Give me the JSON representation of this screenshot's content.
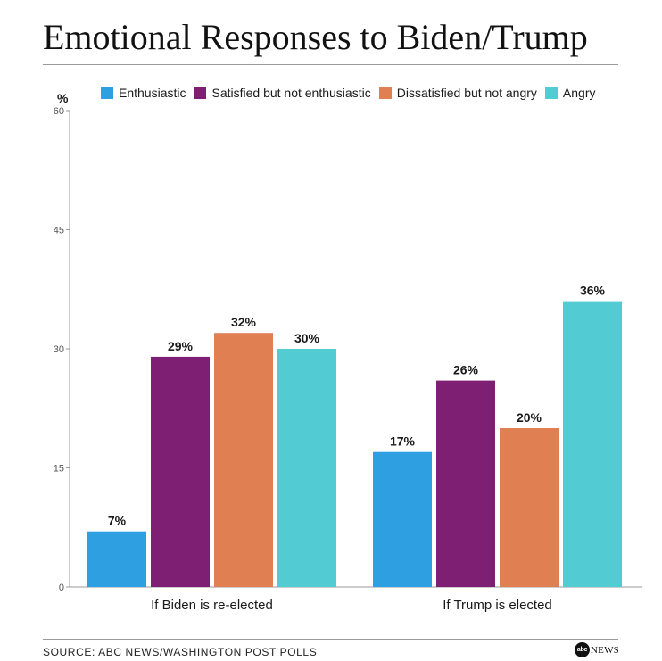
{
  "title": "Emotional Responses to Biden/Trump",
  "unit_label": "%",
  "legend": [
    {
      "label": "Enthusiastic",
      "color": "#2e9fe0"
    },
    {
      "label": "Satisfied but not enthusiastic",
      "color": "#7e1f74"
    },
    {
      "label": "Dissatisfied but not angry",
      "color": "#e07f52"
    },
    {
      "label": "Angry",
      "color": "#52ccd2"
    }
  ],
  "chart_data": {
    "type": "bar",
    "title": "Emotional Responses to Biden/Trump",
    "ylabel": "%",
    "xlabel": "",
    "ylim": [
      0,
      60
    ],
    "yticks": [
      0,
      15,
      30,
      45,
      60
    ],
    "grid": false,
    "categories": [
      "If Biden is re-elected",
      "If Trump is elected"
    ],
    "series": [
      {
        "name": "Enthusiastic",
        "values": [
          7,
          17
        ],
        "labels": [
          "7%",
          "17%"
        ]
      },
      {
        "name": "Satisfied but not enthusiastic",
        "values": [
          29,
          26
        ],
        "labels": [
          "29%",
          "26%"
        ]
      },
      {
        "name": "Dissatisfied but not angry",
        "values": [
          32,
          20
        ],
        "labels": [
          "32%",
          "20%"
        ]
      },
      {
        "name": "Angry",
        "values": [
          30,
          36
        ],
        "labels": [
          "30%",
          "36%"
        ]
      }
    ]
  },
  "footer": {
    "source": "SOURCE: ABC NEWS/WASHINGTON POST POLLS",
    "logo_mark": "abc",
    "logo_text": "NEWS"
  }
}
